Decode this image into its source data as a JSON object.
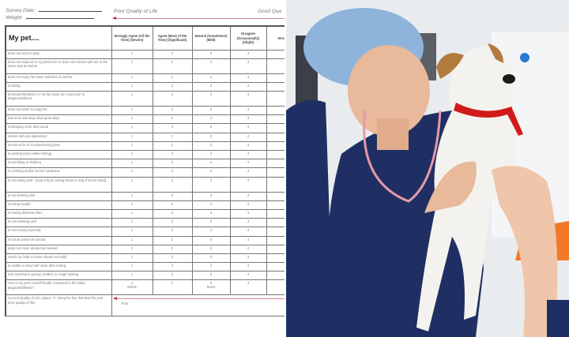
{
  "survey": {
    "survey_date_label": "Survey Date:",
    "weight_label": "Weight:",
    "poor_label": "Poor Quality of Life",
    "good_label": "Good Qua",
    "accent_color": "#c98a9a",
    "table": {
      "title": "My pet....",
      "columns": [
        "Strongly Agree (All the Time) (Severe)",
        "Agree (Most of the Time) (Significant)",
        "Neutral (Sometimes) (Mild)",
        "Disagree (Occasionally) (Slight)",
        "Strong"
      ],
      "rows": [
        {
          "label": "does not want to play",
          "values": [
            "1",
            "2",
            "3",
            "4",
            ""
          ]
        },
        {
          "label": "does not respond to my presence or does not interact with me in the same way as before",
          "values": [
            "1",
            "2",
            "3",
            "4",
            ""
          ],
          "tall": 1
        },
        {
          "label": "does not enjoy the same activities as before",
          "values": [
            "1",
            "2",
            "3",
            "4",
            ""
          ]
        },
        {
          "label": "is hiding",
          "values": [
            "1",
            "2",
            "3",
            "4",
            ""
          ]
        },
        {
          "label": "demeanor/behavior is not the same as it was prior to diagnosis/illness",
          "values": [
            "1",
            "2",
            "3",
            "4",
            ""
          ],
          "tall": 1
        },
        {
          "label": "does not seem to enjoy life",
          "values": [
            "1",
            "2",
            "3",
            "4",
            ""
          ]
        },
        {
          "label": "has more bad days than good days",
          "values": [
            "1",
            "2",
            "3",
            "4",
            ""
          ]
        },
        {
          "label": "is sleeping more than usual",
          "values": [
            "1",
            "2",
            "3",
            "4",
            ""
          ]
        },
        {
          "label": "seems dull and depressed",
          "values": [
            "1",
            "2",
            "3",
            "4",
            ""
          ]
        },
        {
          "label": "seems to be or is experiencing pain",
          "values": [
            "1",
            "2",
            "3",
            "4",
            ""
          ]
        },
        {
          "label": "is panting (even while resting)",
          "values": [
            "1",
            "2",
            "3",
            "4",
            ""
          ]
        },
        {
          "label": "is trembling or shaking",
          "values": [
            "1",
            "2",
            "3",
            "4",
            ""
          ]
        },
        {
          "label": "is vomiting and/or seems nauseous",
          "values": [
            "1",
            "2",
            "3",
            "4",
            ""
          ]
        },
        {
          "label": "is not eating well - (may only be eating treats or only if fed by hand)",
          "values": [
            "1",
            "2",
            "3",
            "4",
            ""
          ],
          "tall": 1
        },
        {
          "label": "is not drinking well",
          "values": [
            "1",
            "2",
            "3",
            "4",
            ""
          ]
        },
        {
          "label": "is losing weight",
          "values": [
            "1",
            "2",
            "3",
            "4",
            ""
          ]
        },
        {
          "label": "is having diarrhea often",
          "values": [
            "1",
            "2",
            "3",
            "4",
            ""
          ]
        },
        {
          "label": "is not urinating well",
          "values": [
            "1",
            "2",
            "3",
            "4",
            ""
          ]
        },
        {
          "label": "is not moving normally",
          "values": [
            "1",
            "2",
            "3",
            "4",
            ""
          ]
        },
        {
          "label": "is not as active as normal",
          "values": [
            "1",
            "2",
            "3",
            "4",
            ""
          ]
        },
        {
          "label": "does not move around as needed",
          "values": [
            "1",
            "2",
            "3",
            "4",
            ""
          ]
        },
        {
          "label": "needs my help to move around normally",
          "values": [
            "1",
            "2",
            "3",
            "4",
            ""
          ]
        },
        {
          "label": "is unable to keep self clean after soiling",
          "values": [
            "1",
            "2",
            "3",
            "4",
            ""
          ]
        },
        {
          "label": "has coat that is greasy, matted, or rough looking",
          "values": [
            "1",
            "2",
            "3",
            "4",
            ""
          ]
        },
        {
          "label": "How is my pet's overall health compared to the initial diagnosis/illness?",
          "values": [
            "1\nWorse",
            "2",
            "3\nSame",
            "4",
            ""
          ],
          "tall": 1
        }
      ],
      "qol": {
        "label": "Current Quality of Life: (place \"X\" along the line that best fits your pet's quality of life)",
        "poor": "Poor"
      }
    }
  },
  "photo": {
    "scrub_color": "#1f2f63",
    "cap_color": "#8fb4dc",
    "collar_color": "#d11a1a"
  }
}
